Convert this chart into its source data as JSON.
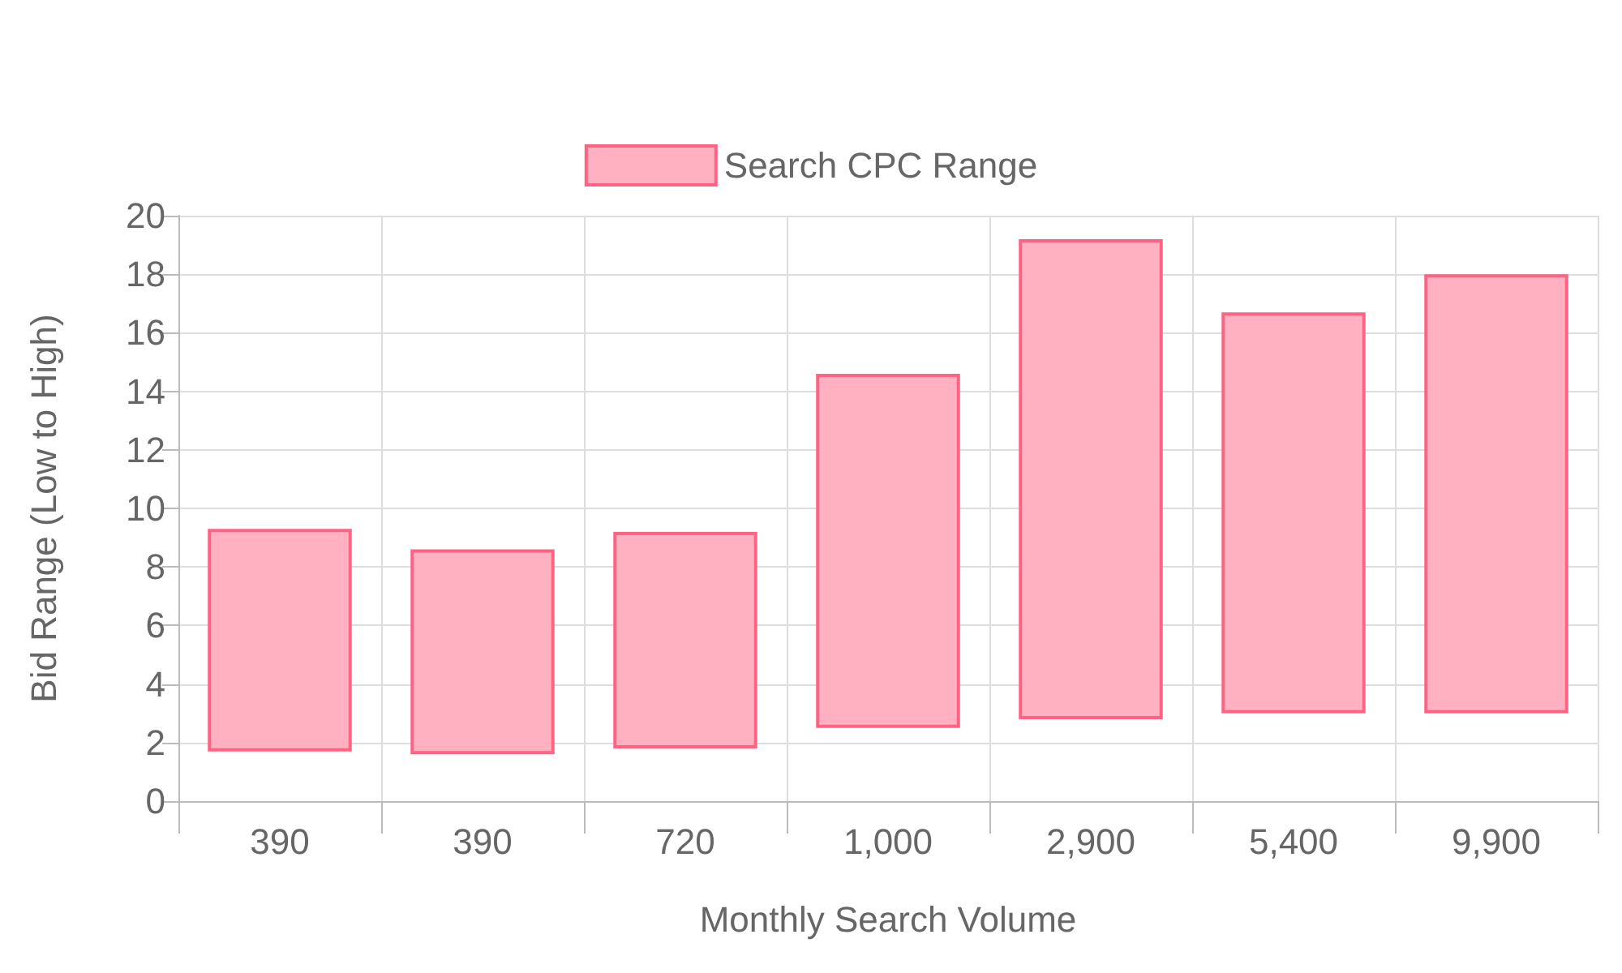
{
  "chart_data": {
    "type": "bar",
    "xlabel": "Monthly Search Volume",
    "ylabel": "Bid Range (Low to High)",
    "categories": [
      "390",
      "390",
      "720",
      "1,000",
      "2,900",
      "5,400",
      "9,900"
    ],
    "series": [
      {
        "name": "Search CPC Range",
        "color": "#ffb1c1",
        "base": [
          1.7,
          1.6,
          1.8,
          2.5,
          2.8,
          3.0,
          3.0
        ],
        "values": [
          7.6,
          7.0,
          7.4,
          12.1,
          16.4,
          13.7,
          15.0
        ]
      }
    ],
    "ylim": [
      0,
      20
    ],
    "yticks": [
      0,
      2,
      4,
      6,
      8,
      10,
      12,
      14,
      16,
      18,
      20
    ],
    "grid": true,
    "legend": "top"
  }
}
